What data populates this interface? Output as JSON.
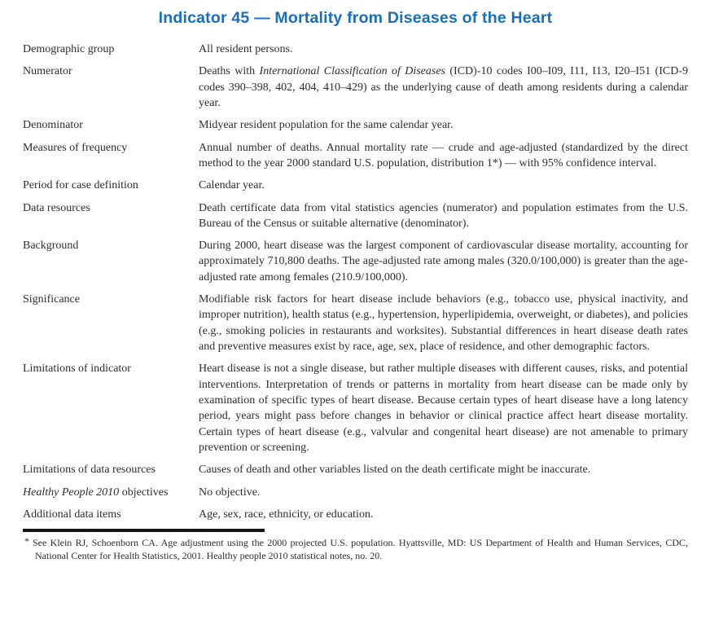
{
  "page": {
    "title": "Indicator 45 — Mortality from Diseases of the Heart"
  },
  "colors": {
    "title_blue": "#1a6fb5",
    "body_text": "#2d2d2d",
    "rule_black": "#161616"
  },
  "table": {
    "rows": [
      {
        "label": [
          {
            "t": "Demographic group"
          }
        ],
        "value": [
          {
            "t": "All resident persons."
          }
        ]
      },
      {
        "label": [
          {
            "t": "Numerator"
          }
        ],
        "value": [
          {
            "t": "Deaths with "
          },
          {
            "t": "International Classification of Diseases",
            "i": true
          },
          {
            "t": " (ICD)-10 codes I00–I09, I11, I13, I20–I51 (ICD-9 codes 390–398, 402, 404, 410–429) as the underlying cause of death among residents during a calendar year."
          }
        ]
      },
      {
        "label": [
          {
            "t": "Denominator"
          }
        ],
        "value": [
          {
            "t": "Midyear resident population for the same calendar year."
          }
        ]
      },
      {
        "label": [
          {
            "t": "Measures of frequency"
          }
        ],
        "value": [
          {
            "t": "Annual number of deaths. Annual mortality rate — crude and age-adjusted (standardized by the direct method to the year 2000 standard U.S. population, distribution 1*) — with 95% confidence interval."
          }
        ]
      },
      {
        "label": [
          {
            "t": "Period for case definition"
          }
        ],
        "value": [
          {
            "t": "Calendar year."
          }
        ]
      },
      {
        "label": [
          {
            "t": "Data resources"
          }
        ],
        "value": [
          {
            "t": "Death certificate data from vital statistics agencies (numerator) and population estimates from the U.S. Bureau of the Census or suitable alternative (denominator)."
          }
        ]
      },
      {
        "label": [
          {
            "t": "Background"
          }
        ],
        "value": [
          {
            "t": "During 2000, heart disease was the largest component of cardiovascular disease mortality, accounting for approximately 710,800 deaths. The age-adjusted rate among males (320.0/100,000) is greater than the age-adjusted rate among females (210.9/100,000)."
          }
        ]
      },
      {
        "label": [
          {
            "t": "Significance"
          }
        ],
        "value": [
          {
            "t": "Modifiable risk factors for heart disease include behaviors (e.g., tobacco use, physical inactivity, and improper nutrition), health status (e.g., hypertension, hyperlipidemia, overweight, or diabetes), and policies (e.g., smoking policies in restaurants and worksites). Substantial differences in heart disease death rates and preventive measures exist by race, age, sex, place of residence, and other demographic factors."
          }
        ]
      },
      {
        "label": [
          {
            "t": "Limitations of indicator"
          }
        ],
        "value": [
          {
            "t": "Heart disease is not a single disease, but rather multiple diseases with different causes, risks, and potential interventions. Interpretation of trends or patterns in mortality from heart disease can be made only by examination of specific types of heart disease. Because certain types of heart disease have a long latency period, years might pass before changes in behavior or clinical practice affect heart disease mortality. Certain types of heart disease (e.g., valvular and congenital heart disease) are not amenable to primary prevention or screening."
          }
        ]
      },
      {
        "label": [
          {
            "t": "Limitations of data resources"
          }
        ],
        "value": [
          {
            "t": "Causes of death and other variables listed on the death certificate might be inaccurate."
          }
        ]
      },
      {
        "label": [
          {
            "t": "Healthy People 2010",
            "i": true
          },
          {
            "t": " objectives"
          }
        ],
        "value": [
          {
            "t": "No objective."
          }
        ]
      },
      {
        "label": [
          {
            "t": "Additional data items"
          }
        ],
        "value": [
          {
            "t": "Age, sex, race, ethnicity, or education."
          }
        ]
      }
    ]
  },
  "footnote": {
    "marker": "*",
    "text": "See Klein RJ, Schoenborn CA. Age adjustment using the 2000 projected U.S. population. Hyattsville, MD: US Department of Health and Human Services, CDC, National Center for Health Statistics, 2001. Healthy people 2010 statistical notes, no. 20."
  }
}
